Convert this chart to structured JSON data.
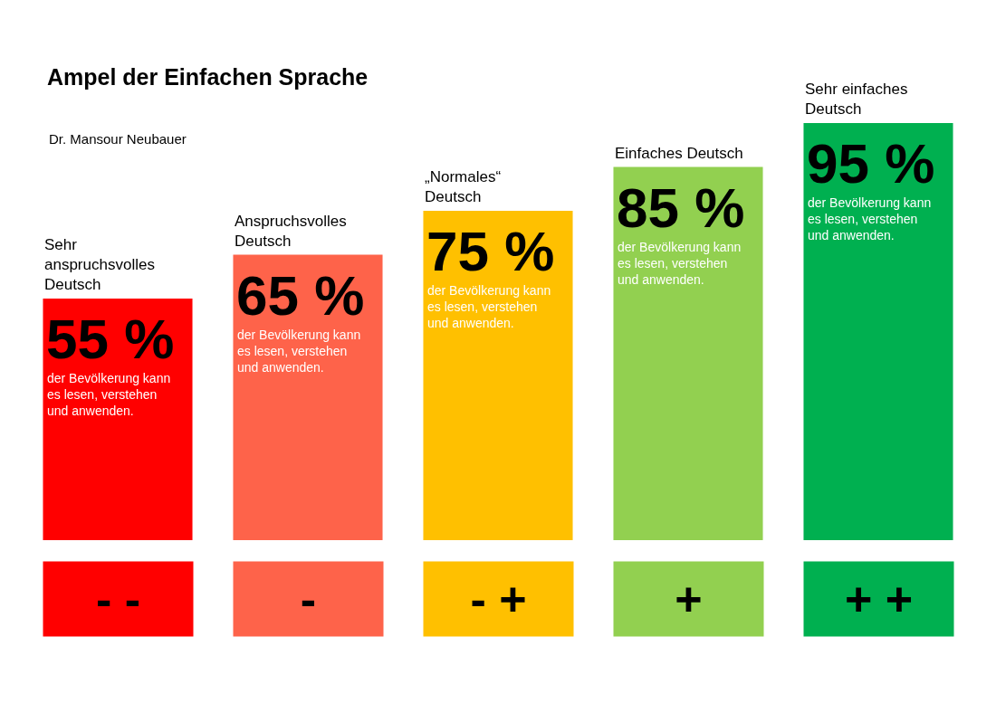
{
  "chart_data": {
    "type": "bar",
    "title": "Ampel der Einfachen Sprache",
    "subtitle": "Dr. Mansour Neubauer",
    "categories": [
      "Sehr\nanspruchsvolles\nDeutsch",
      "Anspruchsvolles\nDeutsch",
      "„Normales“\nDeutsch",
      "Einfaches Deutsch",
      "Sehr einfaches\nDeutsch"
    ],
    "values": [
      55,
      65,
      75,
      85,
      95
    ],
    "colors": [
      "#ff0000",
      "#fe634a",
      "#ffc000",
      "#92d050",
      "#00b050"
    ],
    "value_labels": [
      "55 %",
      "65 %",
      "75 %",
      "85 %",
      "95 %"
    ],
    "annotations": [
      "der Bevölkerung kann\nes lesen, verstehen\nund anwenden.",
      "der Bevölkerung kann\nes lesen, verstehen\nund anwenden.",
      "der Bevölkerung kann\nes lesen, verstehen\nund anwenden.",
      "der Bevölkerung kann\nes lesen, verstehen\nund anwenden.",
      "der Bevölkerung kann\nes lesen, verstehen\nund anwenden.",
      "- -",
      "-",
      "- +",
      "+",
      "+ +"
    ]
  }
}
